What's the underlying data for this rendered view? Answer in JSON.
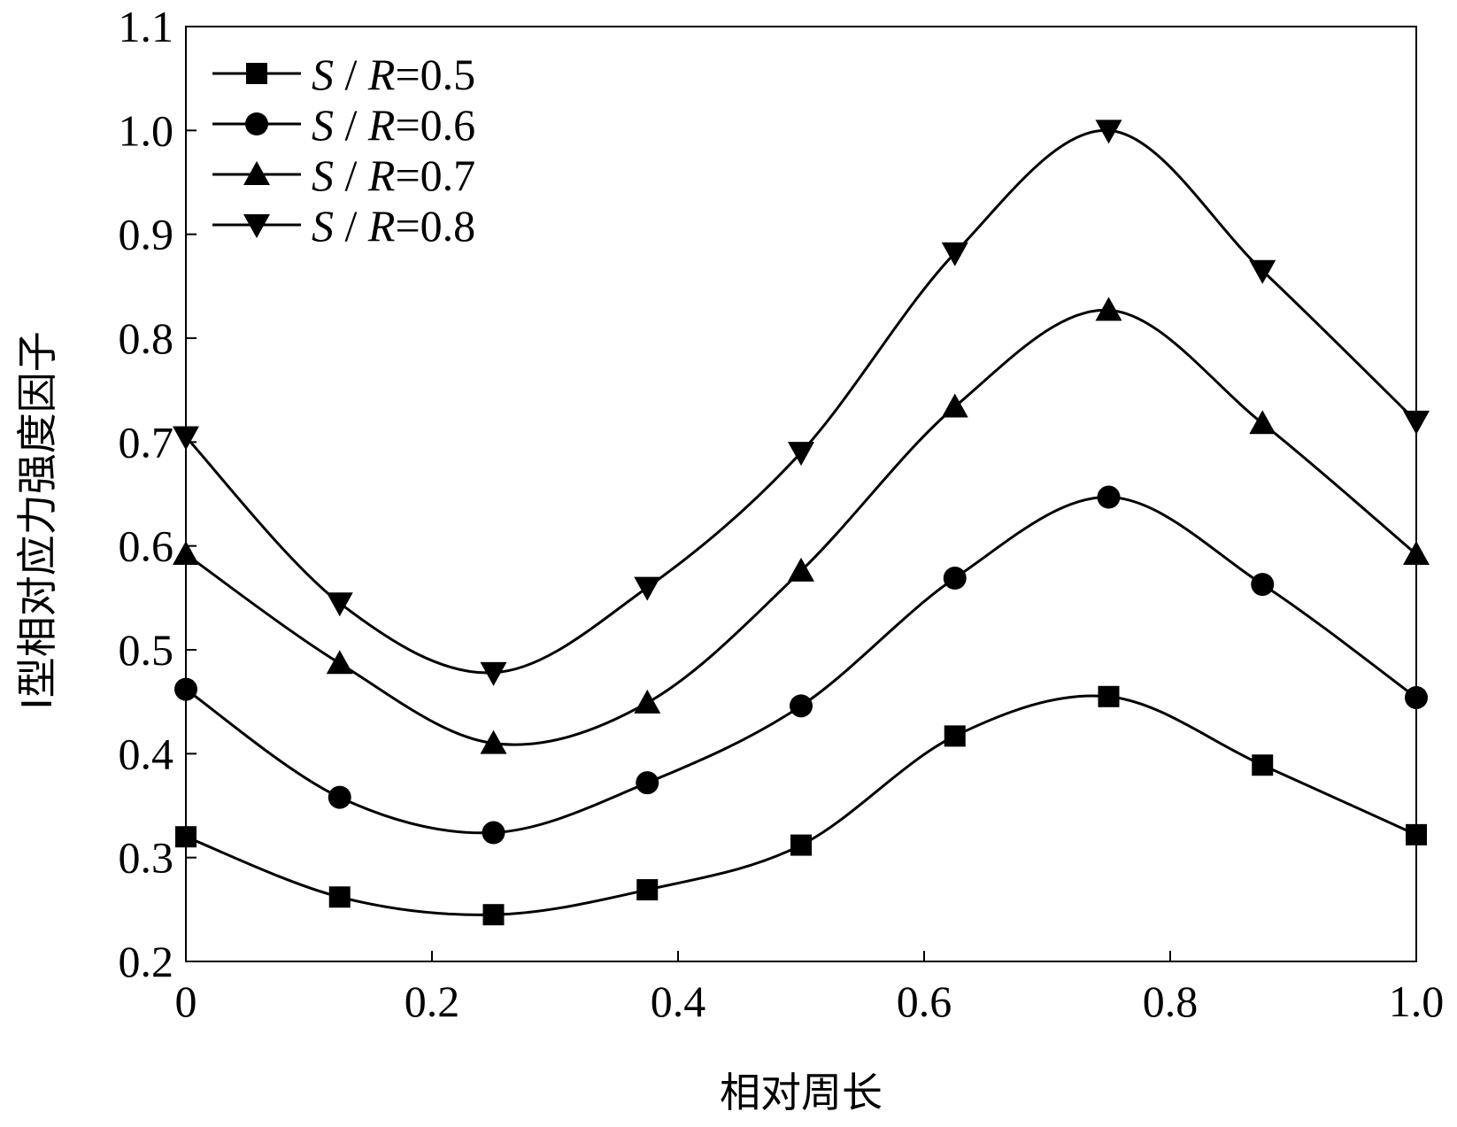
{
  "chart_data": {
    "type": "line",
    "xlabel": "相对周长",
    "ylabel": "Ⅰ型相对应力强度因子",
    "xlim": [
      0,
      1.0
    ],
    "ylim": [
      0.2,
      1.1
    ],
    "xticks": [
      0,
      0.2,
      0.4,
      0.6,
      0.8,
      1.0
    ],
    "xtick_labels": [
      "0",
      "0.2",
      "0.4",
      "0.6",
      "0.8",
      "1.0"
    ],
    "yticks": [
      0.2,
      0.3,
      0.4,
      0.5,
      0.6,
      0.7,
      0.8,
      0.9,
      1.0,
      1.1
    ],
    "ytick_labels": [
      "0.2",
      "0.3",
      "0.4",
      "0.5",
      "0.6",
      "0.7",
      "0.8",
      "0.9",
      "1.0",
      "1.1"
    ],
    "grid": false,
    "legend_position": "top-left",
    "series": [
      {
        "name": "S / R=0.5",
        "name_parts": [
          "S",
          " / ",
          "R",
          "=0.5"
        ],
        "marker": "square",
        "x": [
          0.0,
          0.125,
          0.25,
          0.375,
          0.5,
          0.625,
          0.75,
          0.875,
          1.0
        ],
        "y": [
          0.32,
          0.262,
          0.245,
          0.269,
          0.312,
          0.417,
          0.455,
          0.389,
          0.322
        ]
      },
      {
        "name": "S / R=0.6",
        "name_parts": [
          "S",
          " / ",
          "R",
          "=0.6"
        ],
        "marker": "circle",
        "x": [
          0.0,
          0.125,
          0.25,
          0.375,
          0.5,
          0.625,
          0.75,
          0.875,
          1.0
        ],
        "y": [
          0.462,
          0.358,
          0.324,
          0.372,
          0.446,
          0.569,
          0.647,
          0.563,
          0.454
        ]
      },
      {
        "name": "S / R=0.7",
        "name_parts": [
          "S",
          " / ",
          "R",
          "=0.7"
        ],
        "marker": "triangle-up",
        "x": [
          0.0,
          0.125,
          0.25,
          0.375,
          0.5,
          0.625,
          0.75,
          0.875,
          1.0
        ],
        "y": [
          0.592,
          0.487,
          0.41,
          0.449,
          0.576,
          0.734,
          0.827,
          0.718,
          0.592
        ]
      },
      {
        "name": "S / R=0.8",
        "name_parts": [
          "S",
          " / ",
          "R",
          "=0.8"
        ],
        "marker": "triangle-down",
        "x": [
          0.0,
          0.125,
          0.25,
          0.375,
          0.5,
          0.625,
          0.75,
          0.875,
          1.0
        ],
        "y": [
          0.705,
          0.545,
          0.478,
          0.56,
          0.69,
          0.882,
          1.0,
          0.865,
          0.72
        ]
      }
    ]
  }
}
